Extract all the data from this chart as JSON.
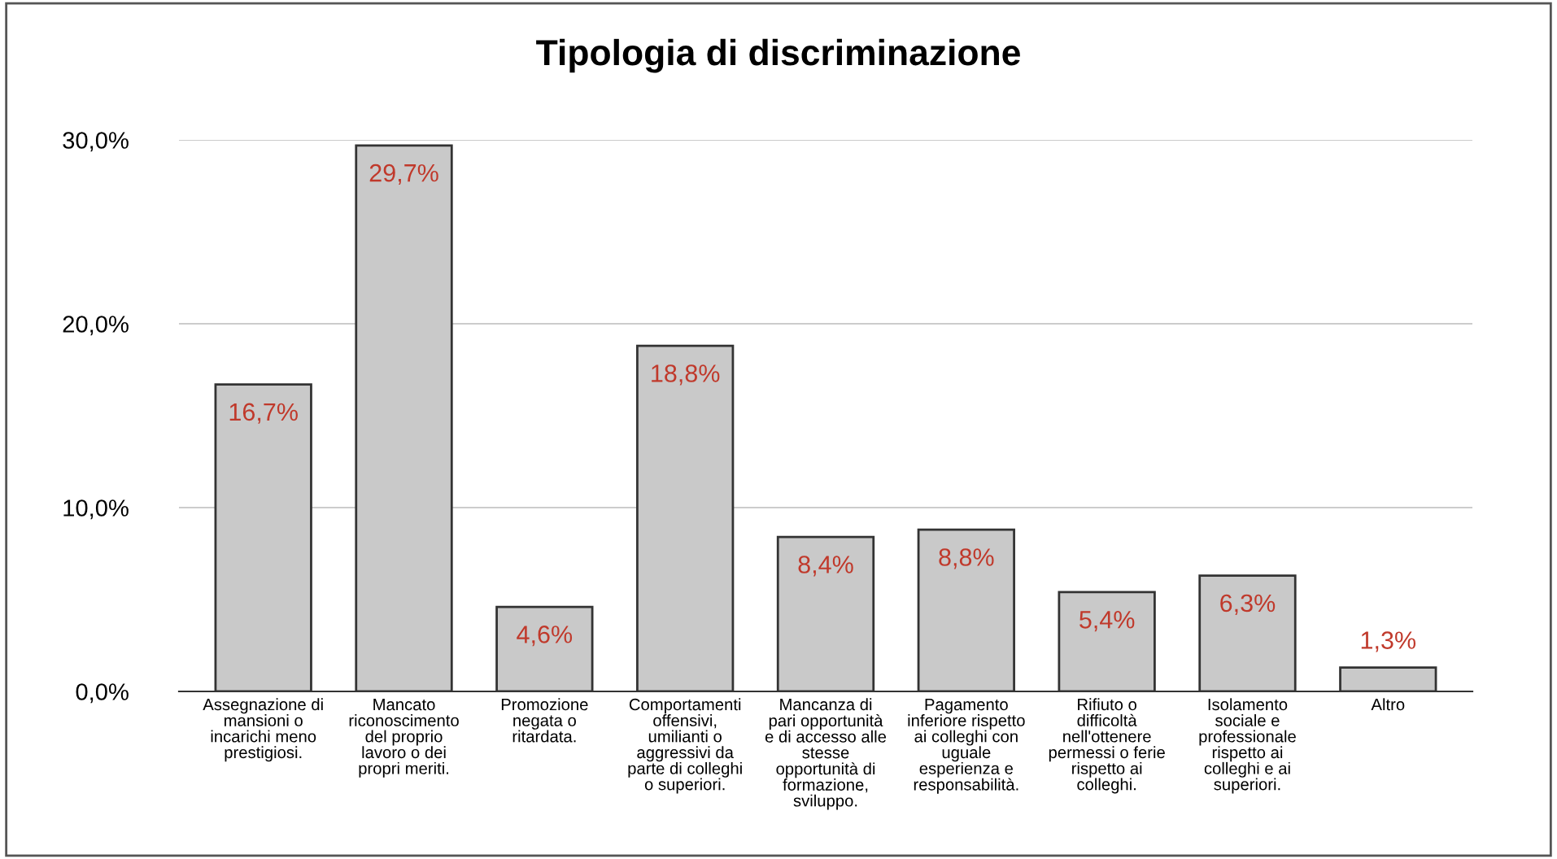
{
  "chart_data": {
    "type": "bar",
    "title": "Tipologia di discriminazione",
    "categories": [
      "Assegnazione di\nmansioni o\nincarichi meno\nprestigiosi.",
      "Mancato\nriconoscimento\ndel proprio\nlavoro o dei\npropri meriti.",
      "Promozione\nnegata o\nritardata.",
      "Comportamenti\noffensivi,\numilianti o\naggressivi da\nparte di colleghi\no superiori.",
      "Mancanza di\npari opportunità\ne di accesso alle\nstesse\nopportunità di\nformazione,\nsviluppo.",
      "Pagamento\ninferiore rispetto\nai colleghi con\nuguale\nesperienza e\nresponsabilità.",
      "Rifiuto o\ndifficoltà\nnell'ottenere\npermessi o ferie\nrispetto ai\ncolleghi.",
      "Isolamento\nsociale e\nprofessionale\nrispetto ai\ncolleghi e ai\nsuperiori.",
      "Altro"
    ],
    "values": [
      16.7,
      29.7,
      4.6,
      18.8,
      8.4,
      8.8,
      5.4,
      6.3,
      1.3
    ],
    "value_labels": [
      "16,7%",
      "29,7%",
      "4,6%",
      "18,8%",
      "8,4%",
      "8,8%",
      "5,4%",
      "6,3%",
      "1,3%"
    ],
    "color": "#c9c9c9",
    "ylim": [
      0,
      30
    ],
    "yticks": [
      {
        "value": 0,
        "label": "0,0%"
      },
      {
        "value": 10,
        "label": "10,0%"
      },
      {
        "value": 20,
        "label": "20,0%"
      },
      {
        "value": 30,
        "label": "30,0%"
      }
    ],
    "grid": "y",
    "legend": false
  }
}
